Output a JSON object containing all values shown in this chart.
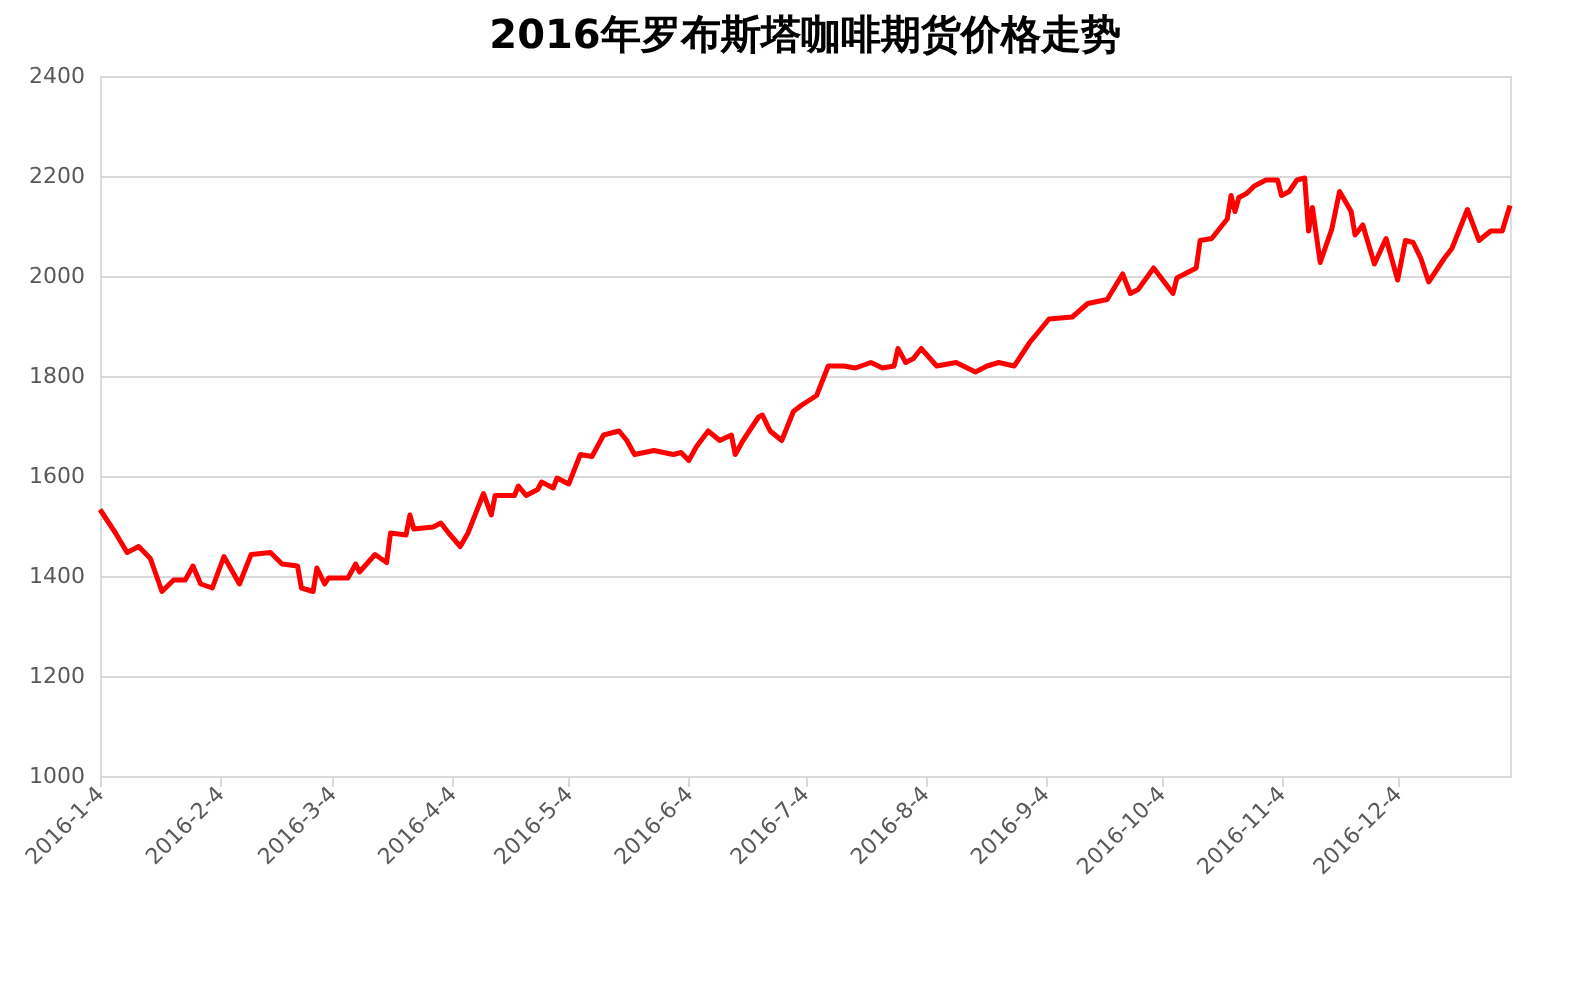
{
  "chart_data": {
    "type": "line",
    "title": "2016年罗布斯塔咖啡期货价格走势",
    "x": [
      "2016-01-04",
      "2016-01-08",
      "2016-01-11",
      "2016-01-14",
      "2016-01-17",
      "2016-01-20",
      "2016-01-23",
      "2016-01-26",
      "2016-01-28",
      "2016-01-30",
      "2016-02-02",
      "2016-02-05",
      "2016-02-09",
      "2016-02-12",
      "2016-02-17",
      "2016-02-20",
      "2016-02-24",
      "2016-02-25",
      "2016-02-28",
      "2016-02-29",
      "2016-03-02",
      "2016-03-03",
      "2016-03-08",
      "2016-03-10",
      "2016-03-11",
      "2016-03-15",
      "2016-03-18",
      "2016-03-19",
      "2016-03-23",
      "2016-03-24",
      "2016-03-25",
      "2016-03-30",
      "2016-04-01",
      "2016-04-03",
      "2016-04-06",
      "2016-04-08",
      "2016-04-12",
      "2016-04-14",
      "2016-04-15",
      "2016-04-20",
      "2016-04-21",
      "2016-04-23",
      "2016-04-26",
      "2016-04-27",
      "2016-04-30",
      "2016-05-01",
      "2016-05-04",
      "2016-05-07",
      "2016-05-10",
      "2016-05-13",
      "2016-05-17",
      "2016-05-19",
      "2016-05-21",
      "2016-05-26",
      "2016-05-31",
      "2016-06-02",
      "2016-06-04",
      "2016-06-06",
      "2016-06-09",
      "2016-06-12",
      "2016-06-15",
      "2016-06-16",
      "2016-06-18",
      "2016-06-22",
      "2016-06-23",
      "2016-06-25",
      "2016-06-28",
      "2016-07-01",
      "2016-07-03",
      "2016-07-07",
      "2016-07-10",
      "2016-07-14",
      "2016-07-17",
      "2016-07-21",
      "2016-07-24",
      "2016-07-27",
      "2016-07-28",
      "2016-07-30",
      "2016-08-01",
      "2016-08-03",
      "2016-08-07",
      "2016-08-12",
      "2016-08-17",
      "2016-08-20",
      "2016-08-23",
      "2016-08-27",
      "2016-08-31",
      "2016-09-05",
      "2016-09-11",
      "2016-09-15",
      "2016-09-20",
      "2016-09-24",
      "2016-09-26",
      "2016-09-28",
      "2016-10-02",
      "2016-10-07",
      "2016-10-08",
      "2016-10-13",
      "2016-10-14",
      "2016-10-17",
      "2016-10-21",
      "2016-10-22",
      "2016-10-23",
      "2016-10-24",
      "2016-10-26",
      "2016-10-28",
      "2016-10-31",
      "2016-11-03",
      "2016-11-04",
      "2016-11-06",
      "2016-11-08",
      "2016-11-10",
      "2016-11-11",
      "2016-11-12",
      "2016-11-14",
      "2016-11-17",
      "2016-11-19",
      "2016-11-22",
      "2016-11-23",
      "2016-11-25",
      "2016-11-28",
      "2016-12-01",
      "2016-12-04",
      "2016-12-06",
      "2016-12-08",
      "2016-12-10",
      "2016-12-12",
      "2016-12-16",
      "2016-12-18",
      "2016-12-22",
      "2016-12-25",
      "2016-12-28",
      "2016-12-31",
      "2017-01-02"
    ],
    "series": [
      {
        "color": "#ff0000",
        "values": [
          1533,
          1486,
          1447,
          1459,
          1435,
          1369,
          1392,
          1392,
          1420,
          1384,
          1376,
          1439,
          1384,
          1443,
          1447,
          1424,
          1420,
          1376,
          1369,
          1416,
          1384,
          1396,
          1396,
          1424,
          1408,
          1443,
          1427,
          1486,
          1482,
          1522,
          1494,
          1498,
          1506,
          1486,
          1459,
          1486,
          1565,
          1522,
          1561,
          1561,
          1580,
          1561,
          1573,
          1588,
          1576,
          1596,
          1584,
          1643,
          1639,
          1682,
          1690,
          1671,
          1643,
          1651,
          1643,
          1647,
          1631,
          1659,
          1690,
          1671,
          1682,
          1643,
          1671,
          1718,
          1722,
          1690,
          1671,
          1729,
          1741,
          1761,
          1820,
          1820,
          1816,
          1827,
          1816,
          1820,
          1855,
          1827,
          1835,
          1855,
          1820,
          1827,
          1808,
          1820,
          1827,
          1820,
          1867,
          1914,
          1918,
          1945,
          1953,
          2004,
          1965,
          1973,
          2016,
          1965,
          1996,
          2016,
          2071,
          2075,
          2114,
          2161,
          2129,
          2157,
          2165,
          2180,
          2192,
          2192,
          2161,
          2169,
          2192,
          2196,
          2090,
          2137,
          2027,
          2094,
          2169,
          2129,
          2082,
          2102,
          2024,
          2075,
          1992,
          2071,
          2067,
          2035,
          1988,
          2035,
          2055,
          2133,
          2071,
          2090,
          2090,
          2141
        ]
      }
    ],
    "xlim": [
      "2016-01-04",
      "2017-01-02"
    ],
    "xticks": [
      {
        "value": "2016-01-04",
        "label": "2016-1-4"
      },
      {
        "value": "2016-02-04",
        "label": "2016-2-4"
      },
      {
        "value": "2016-03-04",
        "label": "2016-3-4"
      },
      {
        "value": "2016-04-04",
        "label": "2016-4-4"
      },
      {
        "value": "2016-05-04",
        "label": "2016-5-4"
      },
      {
        "value": "2016-06-04",
        "label": "2016-6-4"
      },
      {
        "value": "2016-07-04",
        "label": "2016-7-4"
      },
      {
        "value": "2016-08-04",
        "label": "2016-8-4"
      },
      {
        "value": "2016-09-04",
        "label": "2016-9-4"
      },
      {
        "value": "2016-10-04",
        "label": "2016-10-4"
      },
      {
        "value": "2016-11-04",
        "label": "2016-11-4"
      },
      {
        "value": "2016-12-04",
        "label": "2016-12-4"
      }
    ],
    "ylim": [
      1000,
      2400
    ],
    "yticks": [
      1000,
      1200,
      1400,
      1600,
      1800,
      2000,
      2200,
      2400
    ],
    "grid": "y",
    "marker": "none",
    "line_style": "solid"
  }
}
